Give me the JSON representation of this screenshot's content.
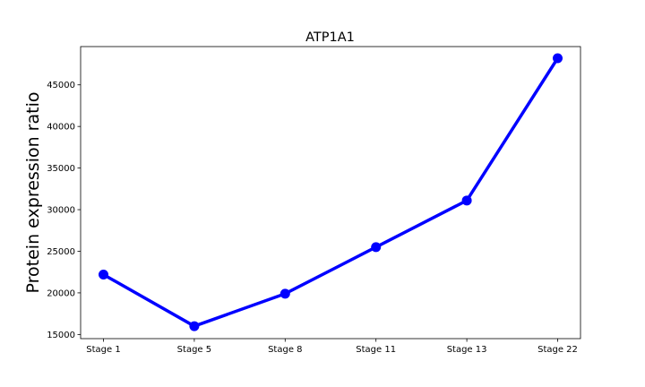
{
  "chart_data": {
    "type": "line",
    "title": "ATP1A1",
    "xlabel": "",
    "ylabel": "Protein expression ratio",
    "categories": [
      "Stage 1",
      "Stage 5",
      "Stage 8",
      "Stage 11",
      "Stage 13",
      "Stage 22"
    ],
    "series": [
      {
        "values": [
          22200,
          16000,
          19900,
          25500,
          31100,
          48200
        ]
      }
    ],
    "ylim": [
      14500,
      49600
    ],
    "yticks": [
      15000,
      20000,
      25000,
      30000,
      35000,
      40000,
      45000
    ],
    "grid": false,
    "color": "#0000ff"
  }
}
